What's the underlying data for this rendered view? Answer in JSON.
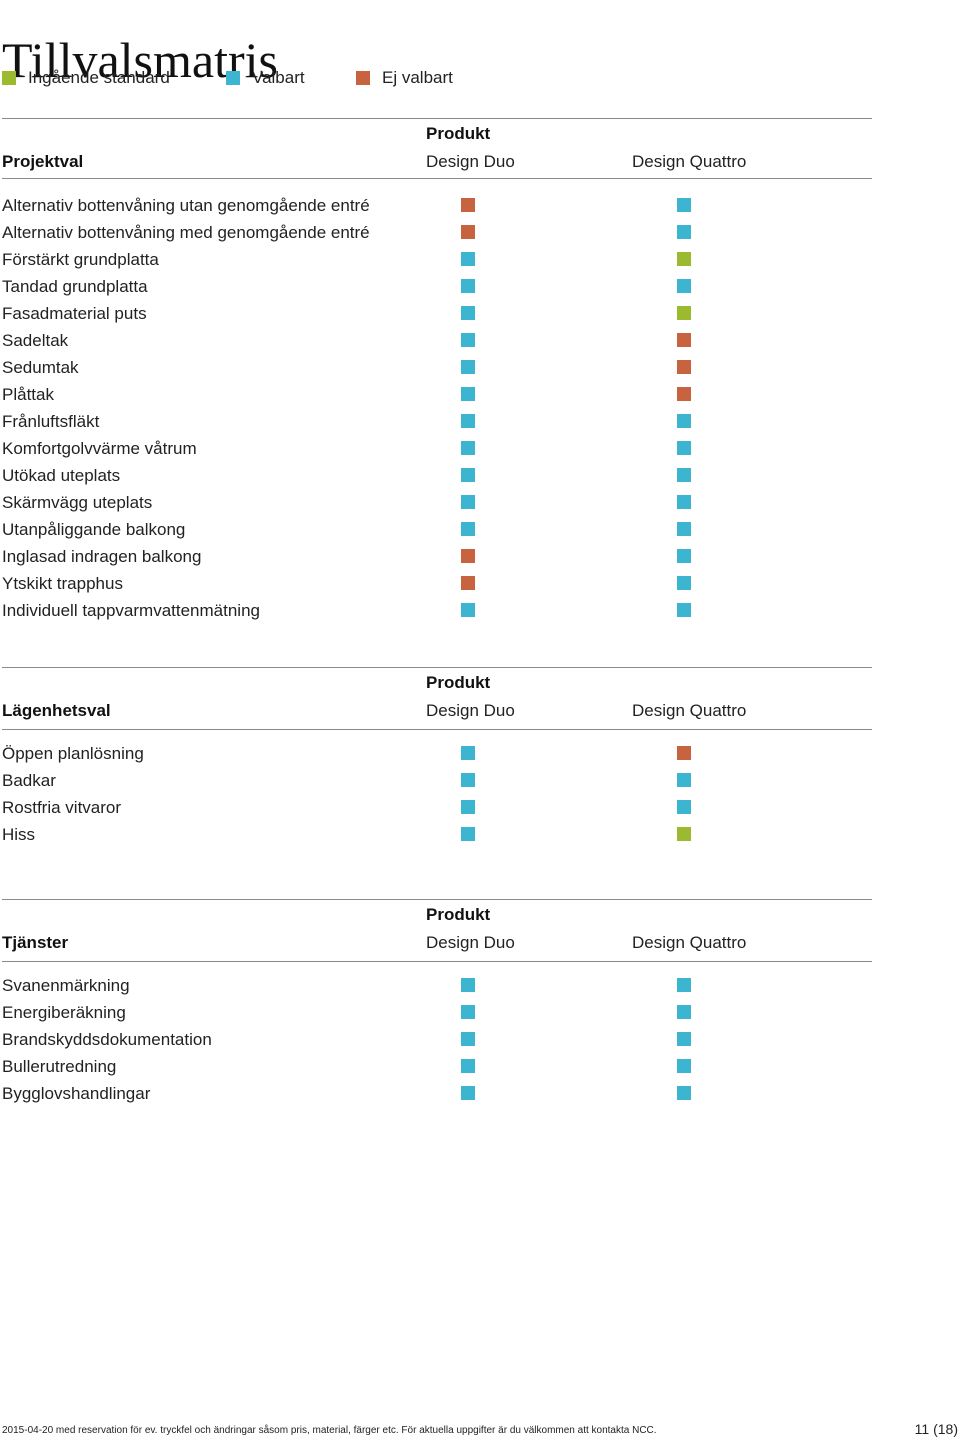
{
  "title": "Tillvalsmatris",
  "colors": {
    "standard": "#9bba2f",
    "valbart": "#3db5d0",
    "ej_valbart": "#c8633f"
  },
  "legend": [
    {
      "status": "standard",
      "label": "Ingående standard"
    },
    {
      "status": "valbart",
      "label": "Valbart"
    },
    {
      "status": "ej_valbart",
      "label": "Ej valbart"
    }
  ],
  "sections": [
    {
      "title": "Projektval",
      "produkt_label": "Produkt",
      "columns": [
        "Design Duo",
        "Design Quattro"
      ],
      "rows": [
        {
          "label": "Alternativ bottenvåning utan genomgående entré",
          "duo": "ej_valbart",
          "quattro": "valbart"
        },
        {
          "label": "Alternativ bottenvåning med genomgående entré",
          "duo": "ej_valbart",
          "quattro": "valbart"
        },
        {
          "label": "Förstärkt grundplatta",
          "duo": "valbart",
          "quattro": "standard"
        },
        {
          "label": "Tandad grundplatta",
          "duo": "valbart",
          "quattro": "valbart"
        },
        {
          "label": "Fasadmaterial puts",
          "duo": "valbart",
          "quattro": "standard"
        },
        {
          "label": "Sadeltak",
          "duo": "valbart",
          "quattro": "ej_valbart"
        },
        {
          "label": "Sedumtak",
          "duo": "valbart",
          "quattro": "ej_valbart"
        },
        {
          "label": "Plåttak",
          "duo": "valbart",
          "quattro": "ej_valbart"
        },
        {
          "label": "Frånluftsfläkt",
          "duo": "valbart",
          "quattro": "valbart"
        },
        {
          "label": "Komfortgolvvärme våtrum",
          "duo": "valbart",
          "quattro": "valbart"
        },
        {
          "label": "Utökad uteplats",
          "duo": "valbart",
          "quattro": "valbart"
        },
        {
          "label": "Skärmvägg uteplats",
          "duo": "valbart",
          "quattro": "valbart"
        },
        {
          "label": "Utanpåliggande balkong",
          "duo": "valbart",
          "quattro": "valbart"
        },
        {
          "label": "Inglasad indragen balkong",
          "duo": "ej_valbart",
          "quattro": "valbart"
        },
        {
          "label": "Ytskikt trapphus",
          "duo": "ej_valbart",
          "quattro": "valbart"
        },
        {
          "label": "Individuell tappvarmvattenmätning",
          "duo": "valbart",
          "quattro": "valbart"
        }
      ]
    },
    {
      "title": "Lägenhetsval",
      "produkt_label": "Produkt",
      "columns": [
        "Design Duo",
        "Design Quattro"
      ],
      "rows": [
        {
          "label": "Öppen planlösning",
          "duo": "valbart",
          "quattro": "ej_valbart"
        },
        {
          "label": "Badkar",
          "duo": "valbart",
          "quattro": "valbart"
        },
        {
          "label": "Rostfria vitvaror",
          "duo": "valbart",
          "quattro": "valbart"
        },
        {
          "label": "Hiss",
          "duo": "valbart",
          "quattro": "standard"
        }
      ]
    },
    {
      "title": "Tjänster",
      "produkt_label": "Produkt",
      "columns": [
        "Design Duo",
        "Design Quattro"
      ],
      "rows": [
        {
          "label": "Svanenmärkning",
          "duo": "valbart",
          "quattro": "valbart"
        },
        {
          "label": "Energiberäkning",
          "duo": "valbart",
          "quattro": "valbart"
        },
        {
          "label": "Brandskyddsdokumentation",
          "duo": "valbart",
          "quattro": "valbart"
        },
        {
          "label": "Bullerutredning",
          "duo": "valbart",
          "quattro": "valbart"
        },
        {
          "label": "Bygglovshandlingar",
          "duo": "valbart",
          "quattro": "valbart"
        }
      ]
    }
  ],
  "footer": {
    "text": "2015-04-20 med reservation för ev. tryckfel och ändringar såsom pris, material, färger etc. För aktuella uppgifter är du välkommen att kontakta NCC.",
    "page": "11 (18)"
  }
}
